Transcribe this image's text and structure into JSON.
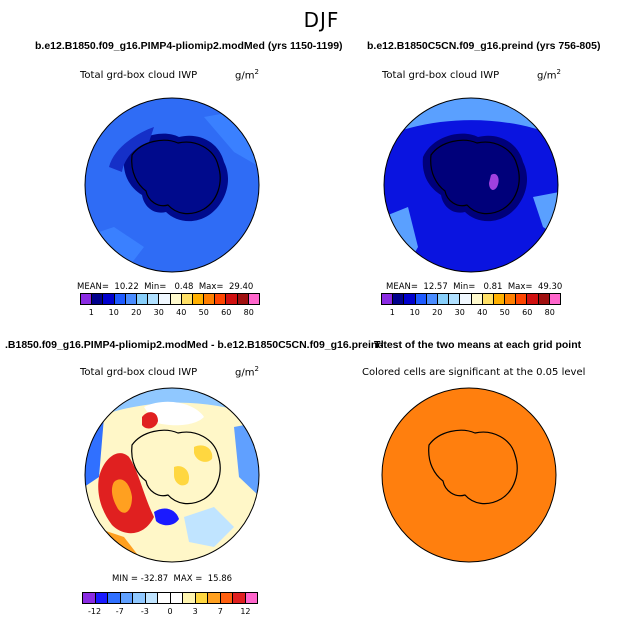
{
  "title": "DJF",
  "panels": {
    "p1": {
      "title": "b.e12.B1850.f09_g16.PIMP4-pliomip2.modMed (yrs 1150-1199)",
      "var": "Total grd-box cloud IWP",
      "unit": "g/m",
      "unit_exp": "2",
      "mean_label": "MEAN=",
      "mean": "10.22",
      "min_label": "Min=",
      "min": "0.48",
      "max_label": "Max=",
      "max": "29.40"
    },
    "p2": {
      "title": "b.e12.B1850C5CN.f09_g16.preind (yrs 756-805)",
      "var": "Total grd-box cloud IWP",
      "unit": "g/m",
      "unit_exp": "2",
      "mean_label": "MEAN=",
      "mean": "12.57",
      "min_label": "Min=",
      "min": "0.81",
      "max_label": "Max=",
      "max": "49.30"
    },
    "p3": {
      "title": ".B1850.f09_g16.PIMP4-pliomip2.modMed - b.e12.B1850C5CN.f09_g16.preind",
      "var": "Total grd-box cloud IWP",
      "unit": "g/m",
      "unit_exp": "2",
      "min_label": "MIN =",
      "min": "-32.87",
      "max_label": "MAX =",
      "max": "15.86"
    },
    "p4": {
      "title": "T-test of the two means at each grid point",
      "var": "Colored cells are significant at the 0.05 level"
    }
  },
  "colorbar_abs": {
    "colors": [
      "#8a2be2",
      "#00008b",
      "#0000cd",
      "#1e5aff",
      "#4a8cff",
      "#87cefa",
      "#b0e0ff",
      "#f0f8ff",
      "#fffacd",
      "#ffe066",
      "#ffb000",
      "#ff7f00",
      "#ff4500",
      "#d01010",
      "#a01010",
      "#ff66cc"
    ],
    "ticks": [
      "1",
      "10",
      "20",
      "30",
      "40",
      "50",
      "60",
      "80"
    ]
  },
  "colorbar_diff": {
    "colors": [
      "#8a2be2",
      "#1a1aff",
      "#3070ff",
      "#60a0ff",
      "#90c8ff",
      "#c0e4ff",
      "#ffffff",
      "#ffffff",
      "#fff5b0",
      "#ffd740",
      "#ffa020",
      "#ff6010",
      "#e02020",
      "#ff66cc"
    ],
    "ticks": [
      "-12",
      "-7",
      "-3",
      "0",
      "3",
      "7",
      "12"
    ]
  },
  "colors": {
    "ocean_p1": "#2f6cf5",
    "ice_p1": "#000a8c",
    "ocean_p2": "#0a14e0",
    "ice_p2": "#00007a",
    "diff_base": "#fff7c8",
    "ttest": "#ff7f0e"
  }
}
